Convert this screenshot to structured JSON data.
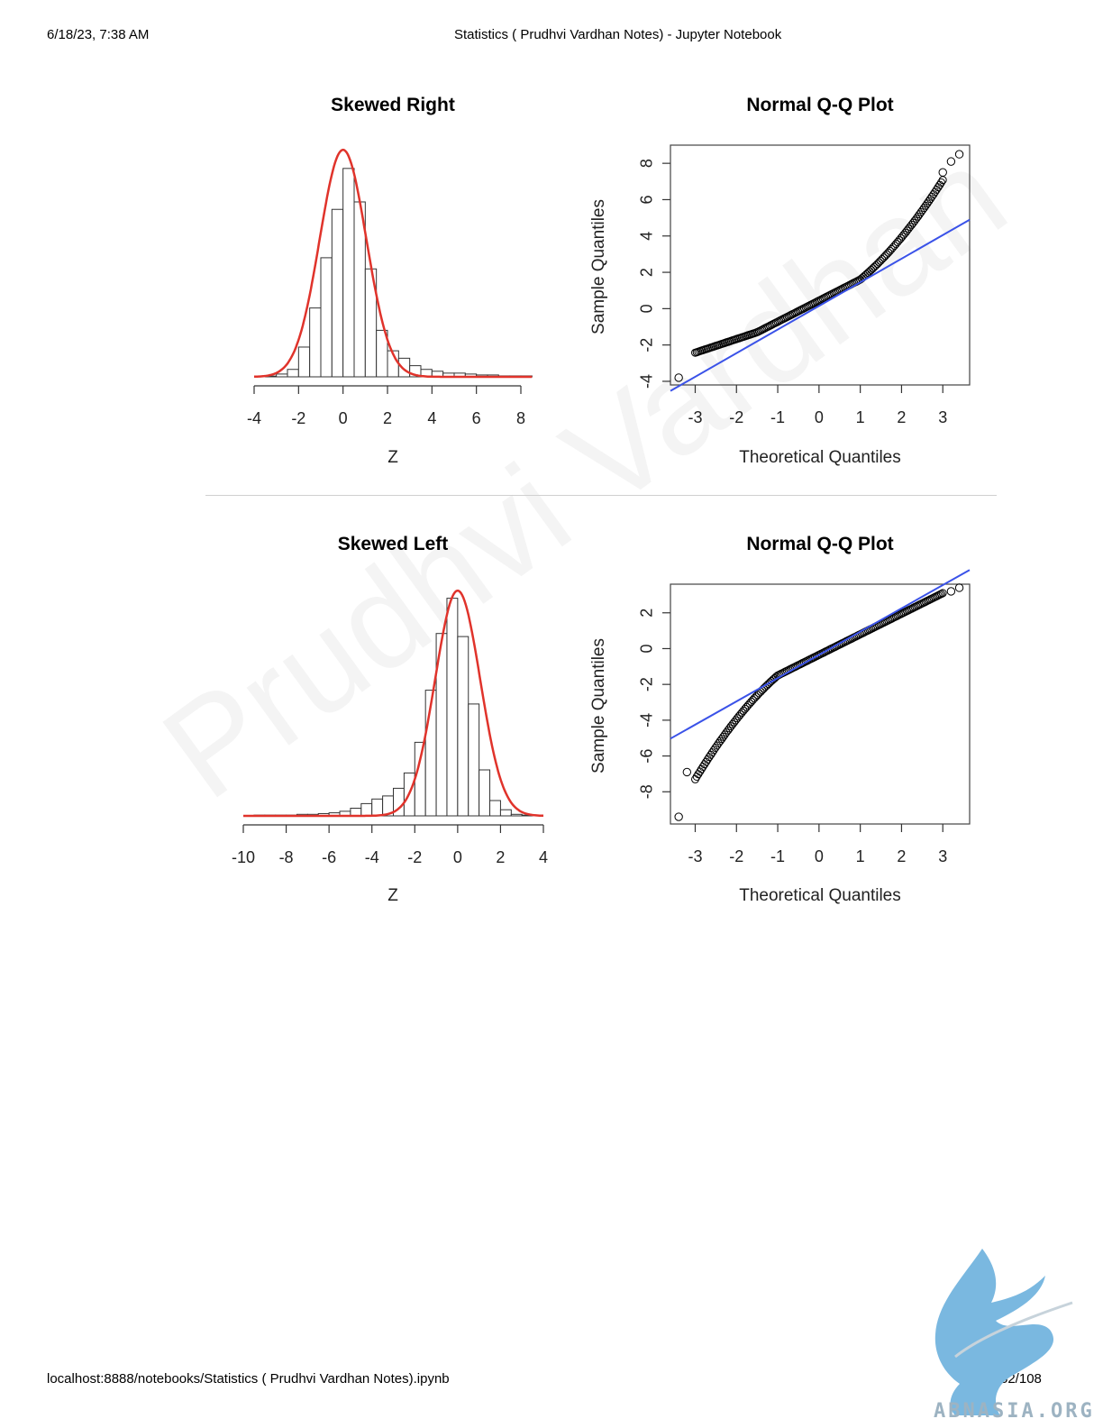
{
  "header": {
    "datetime": "6/18/23, 7:38 AM",
    "title": "Statistics ( Prudhvi Vardhan Notes) - Jupyter Notebook"
  },
  "footer": {
    "url": "localhost:8888/notebooks/Statistics ( Prudhvi Vardhan Notes).ipynb",
    "page": "52/108"
  },
  "watermark": "Prudhvi Vardhan",
  "logo": {
    "icon": "griffin-logo-icon",
    "text": "ABNASIA.ORG",
    "color": "#7ab8e0"
  },
  "colors": {
    "curve": "#e0332b",
    "qq_line": "#3a52e8",
    "points": "#000000"
  },
  "chart_data": [
    {
      "type": "bar",
      "title": "Skewed Right",
      "xlabel": "Z",
      "ylabel": "",
      "xlim": [
        -4,
        8.5
      ],
      "xticks": [
        -4,
        -2,
        0,
        2,
        4,
        6,
        8
      ],
      "bin_width": 0.5,
      "bin_starts": [
        -3.5,
        -3,
        -2.5,
        -2,
        -1.5,
        -1,
        -0.5,
        0,
        0.5,
        1,
        1.5,
        2,
        2.5,
        3,
        3.5,
        4,
        4.5,
        5,
        5.5,
        6,
        6.5,
        7,
        7.5,
        8
      ],
      "values": [
        0.4,
        1.5,
        4,
        16,
        37,
        64,
        90,
        112,
        94,
        58,
        25,
        14,
        10,
        6,
        4,
        3,
        2,
        2,
        1.5,
        1,
        1,
        0.5,
        0.5,
        0.5
      ],
      "ylim": [
        0,
        125
      ],
      "overlay_curve": {
        "type": "normal",
        "mean": 0,
        "sd": 1,
        "peak": 122
      }
    },
    {
      "type": "scatter",
      "title": "Normal Q-Q Plot",
      "xlabel": "Theoretical Quantiles",
      "ylabel": "Sample Quantiles",
      "xlim": [
        -3.6,
        3.65
      ],
      "ylim": [
        -4.2,
        9.0
      ],
      "xticks": [
        -3,
        -2,
        -1,
        0,
        1,
        2,
        3
      ],
      "yticks": [
        -4,
        -2,
        0,
        2,
        4,
        6,
        8
      ],
      "series": [
        {
          "values_rule": "right-skewed sample quantiles"
        }
      ],
      "reference_line": {
        "slope": 1.3,
        "intercept": 0.15
      },
      "outliers": [
        [
          -3.4,
          -3.8
        ],
        [
          3.4,
          8.5
        ],
        [
          3.2,
          8.1
        ],
        [
          3.0,
          7.5
        ]
      ]
    },
    {
      "type": "bar",
      "title": "Skewed Left",
      "xlabel": "Z",
      "ylabel": "",
      "xlim": [
        -10,
        4
      ],
      "xticks": [
        -10,
        -8,
        -6,
        -4,
        -2,
        0,
        2,
        4
      ],
      "bin_width": 0.5,
      "bin_starts": [
        -9.5,
        -9,
        -8.5,
        -8,
        -7.5,
        -7,
        -6.5,
        -6,
        -5.5,
        -5,
        -4.5,
        -4,
        -3.5,
        -3,
        -2.5,
        -2,
        -1.5,
        -1,
        -0.5,
        0,
        0.5,
        1,
        1.5,
        2,
        2.5,
        3
      ],
      "values": [
        0.5,
        0.5,
        0.5,
        0.5,
        1,
        1,
        1.5,
        2,
        3,
        5,
        8,
        11,
        13,
        18,
        28,
        48,
        82,
        119,
        142,
        117,
        73,
        30,
        10,
        4,
        1,
        0.5
      ],
      "ylim": [
        0,
        150
      ],
      "overlay_curve": {
        "type": "normal",
        "mean": 0,
        "sd": 1,
        "peak": 147
      }
    },
    {
      "type": "scatter",
      "title": "Normal Q-Q Plot",
      "xlabel": "Theoretical Quantiles",
      "ylabel": "Sample Quantiles",
      "xlim": [
        -3.6,
        3.65
      ],
      "ylim": [
        -9.8,
        3.6
      ],
      "xticks": [
        -3,
        -2,
        -1,
        0,
        1,
        2,
        3
      ],
      "yticks": [
        -8,
        -6,
        -4,
        -2,
        0,
        2
      ],
      "series": [
        {
          "values_rule": "left-skewed sample quantiles"
        }
      ],
      "reference_line": {
        "slope": 1.3,
        "intercept": -0.35
      },
      "outliers": [
        [
          -3.4,
          -9.4
        ],
        [
          -3.2,
          -6.9
        ],
        [
          3.4,
          3.4
        ],
        [
          3.2,
          3.2
        ]
      ]
    }
  ]
}
